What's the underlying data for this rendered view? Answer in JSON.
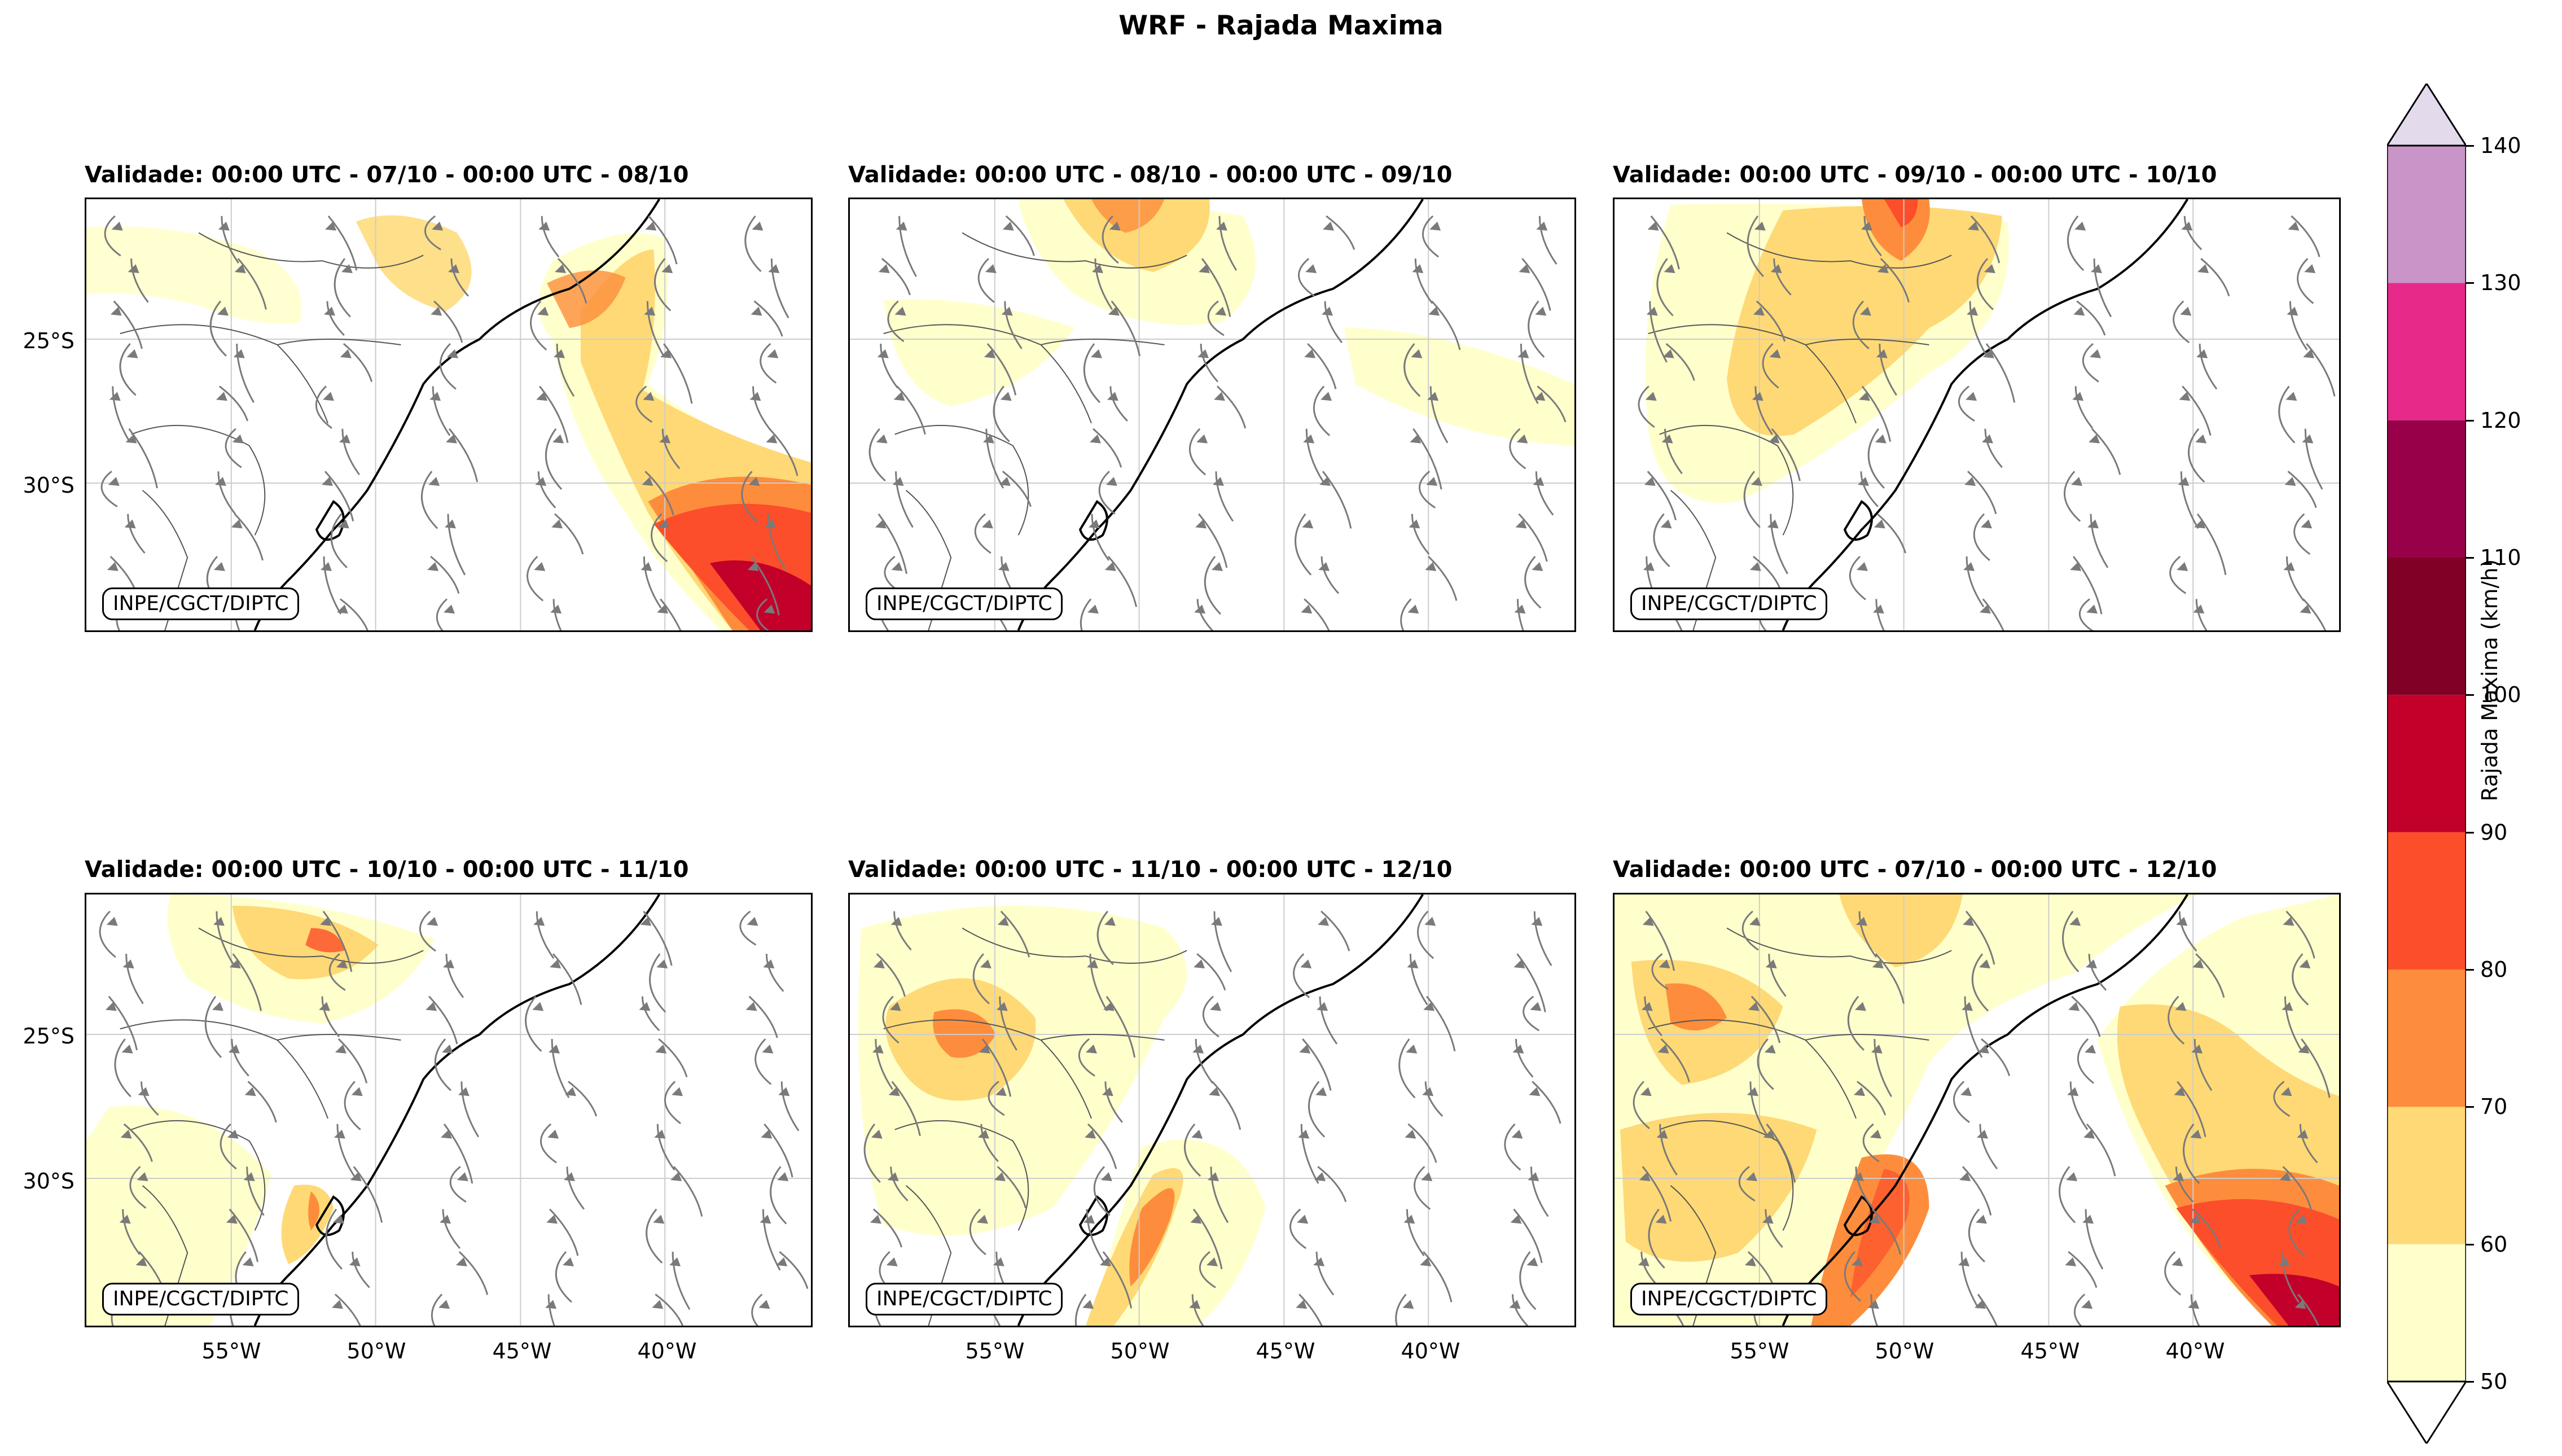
{
  "figure": {
    "title": "WRF - Rajada Maxima",
    "credit": "INPE/CGCT/DIPTC",
    "lat_ticks": [
      "25°S",
      "30°S"
    ],
    "lon_ticks": [
      "55°W",
      "50°W",
      "45°W",
      "40°W"
    ]
  },
  "panels": [
    {
      "title": "Validade: 00:00 UTC - 07/10 - 00:00 UTC - 08/10"
    },
    {
      "title": "Validade: 00:00 UTC - 08/10 - 00:00 UTC - 09/10"
    },
    {
      "title": "Validade: 00:00 UTC - 09/10 - 00:00 UTC - 10/10"
    },
    {
      "title": "Validade: 00:00 UTC - 10/10 - 00:00 UTC - 11/10"
    },
    {
      "title": "Validade: 00:00 UTC - 11/10 - 00:00 UTC - 12/10"
    },
    {
      "title": "Validade: 00:00 UTC - 07/10 - 00:00 UTC - 12/10"
    }
  ],
  "colorbar": {
    "label": "Rajada Maxima (km/h)",
    "ticks": [
      "50",
      "60",
      "70",
      "80",
      "90",
      "100",
      "110",
      "120",
      "130",
      "140"
    ],
    "colors": [
      "#ffffcc",
      "#fed976",
      "#fd8d3c",
      "#fc4e2a",
      "#c2002a",
      "#800026",
      "#99004a",
      "#e7298a",
      "#c994c7"
    ],
    "over_color": "#e3dbeb",
    "under_color": "#ffffff"
  },
  "colors": {
    "streamline": "#7a7a7a",
    "gridline": "#cccccc",
    "coast": "#000000",
    "border": "#555555"
  }
}
